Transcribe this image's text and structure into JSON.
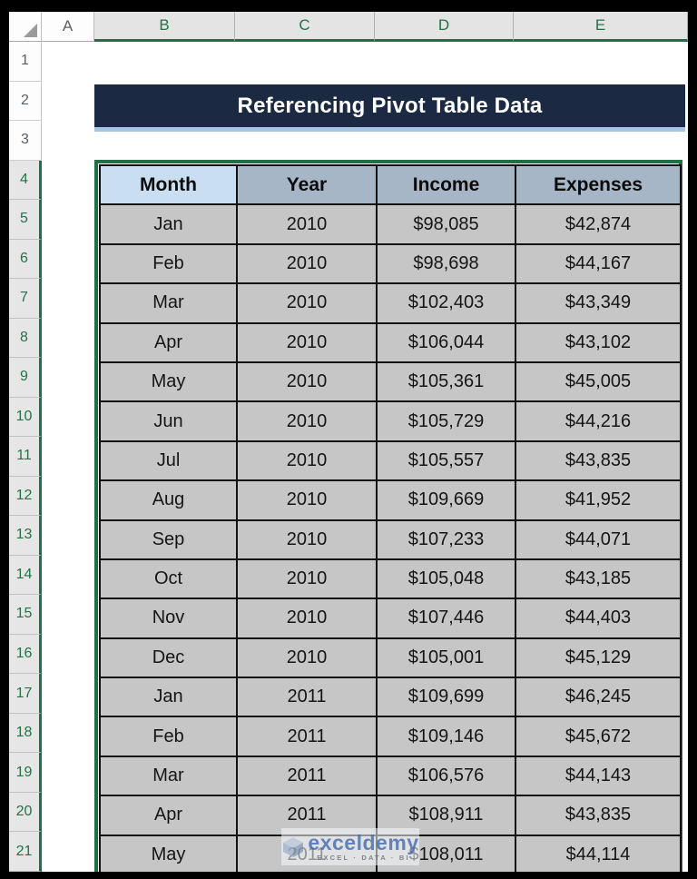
{
  "sheet": {
    "column_headers": [
      "A",
      "B",
      "C",
      "D",
      "E"
    ],
    "row_headers": [
      "1",
      "2",
      "3",
      "4",
      "5",
      "6",
      "7",
      "8",
      "9",
      "10",
      "11",
      "12",
      "13",
      "14",
      "15",
      "16",
      "17",
      "18",
      "19",
      "20",
      "21"
    ]
  },
  "banner": {
    "title": "Referencing Pivot Table Data"
  },
  "table": {
    "headers": [
      "Month",
      "Year",
      "Income",
      "Expenses"
    ],
    "rows": [
      [
        "Jan",
        "2010",
        "$98,085",
        "$42,874"
      ],
      [
        "Feb",
        "2010",
        "$98,698",
        "$44,167"
      ],
      [
        "Mar",
        "2010",
        "$102,403",
        "$43,349"
      ],
      [
        "Apr",
        "2010",
        "$106,044",
        "$43,102"
      ],
      [
        "May",
        "2010",
        "$105,361",
        "$45,005"
      ],
      [
        "Jun",
        "2010",
        "$105,729",
        "$44,216"
      ],
      [
        "Jul",
        "2010",
        "$105,557",
        "$43,835"
      ],
      [
        "Aug",
        "2010",
        "$109,669",
        "$41,952"
      ],
      [
        "Sep",
        "2010",
        "$107,233",
        "$44,071"
      ],
      [
        "Oct",
        "2010",
        "$105,048",
        "$43,185"
      ],
      [
        "Nov",
        "2010",
        "$107,446",
        "$44,403"
      ],
      [
        "Dec",
        "2010",
        "$105,001",
        "$45,129"
      ],
      [
        "Jan",
        "2011",
        "$109,699",
        "$46,245"
      ],
      [
        "Feb",
        "2011",
        "$109,146",
        "$45,672"
      ],
      [
        "Mar",
        "2011",
        "$106,576",
        "$44,143"
      ],
      [
        "Apr",
        "2011",
        "$108,911",
        "$43,835"
      ],
      [
        "May",
        "2011",
        "$108,011",
        "$44,114"
      ]
    ]
  },
  "watermark": {
    "brand": "exceldemy",
    "tagline": "EXCEL · DATA · BI"
  },
  "colors": {
    "selection_green": "#1e7145",
    "banner_navy": "#1b2942",
    "banner_underline_blue": "#a9c5e4",
    "header_month_blue": "#cadef2",
    "header_gray_blue": "#a7b6c6",
    "cell_gray": "#c6c6c6"
  }
}
